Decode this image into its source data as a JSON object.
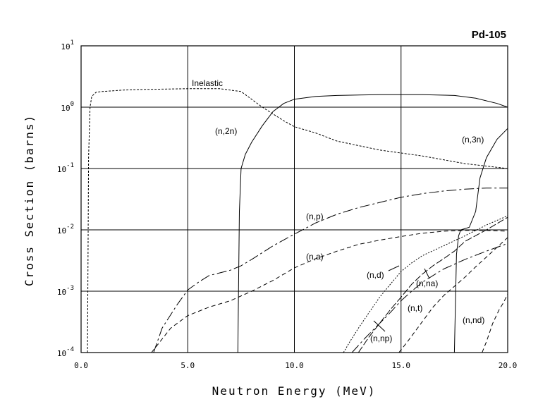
{
  "chart_data": {
    "type": "line",
    "title": "Pd-105",
    "xlabel": "Neutron Energy (MeV)",
    "ylabel": "Cross Section (barns)",
    "xlim": [
      0,
      20
    ],
    "ylim": [
      0.0001,
      10
    ],
    "yscale": "log",
    "grid": true,
    "x_ticks": [
      {
        "value": 0,
        "label": "0.0"
      },
      {
        "value": 5,
        "label": "5.0"
      },
      {
        "value": 10,
        "label": "10.0"
      },
      {
        "value": 15,
        "label": "15.0"
      },
      {
        "value": 20,
        "label": "20.0"
      }
    ],
    "y_ticks": [
      {
        "value": 0.0001,
        "base": "10",
        "exp": "-4"
      },
      {
        "value": 0.001,
        "base": "10",
        "exp": "-3"
      },
      {
        "value": 0.01,
        "base": "10",
        "exp": "-2"
      },
      {
        "value": 0.1,
        "base": "10",
        "exp": "-1"
      },
      {
        "value": 1,
        "base": "10",
        "exp": "0"
      },
      {
        "value": 10,
        "base": "10",
        "exp": "1"
      }
    ],
    "series": [
      {
        "name": "Inelastic",
        "dash": "3,2",
        "x": [
          0.3,
          0.35,
          0.42,
          0.5,
          0.7,
          1.0,
          2.0,
          3.0,
          5.0,
          6.5,
          7.5,
          8.5,
          9.5,
          10.0,
          11.0,
          12.0,
          14.0,
          16.0,
          18.0,
          20.0
        ],
        "y": [
          0.0001,
          0.15,
          1.0,
          1.5,
          1.75,
          1.8,
          1.9,
          1.95,
          2.0,
          2.0,
          1.8,
          1.0,
          0.6,
          0.48,
          0.38,
          0.28,
          0.2,
          0.16,
          0.12,
          0.1
        ]
      },
      {
        "name": "(n,2n)",
        "dash": "",
        "x": [
          7.35,
          7.42,
          7.5,
          7.7,
          8.0,
          8.5,
          9.0,
          9.5,
          10.0,
          11.0,
          12.0,
          14.0,
          16.0,
          17.5,
          18.5,
          19.5,
          20.0
        ],
        "y": [
          0.0001,
          0.02,
          0.1,
          0.17,
          0.27,
          0.5,
          0.85,
          1.15,
          1.35,
          1.5,
          1.55,
          1.6,
          1.6,
          1.55,
          1.4,
          1.15,
          1.0
        ]
      },
      {
        "name": "(n,3n)",
        "dash": "",
        "x": [
          17.5,
          17.6,
          17.7,
          17.8,
          18.2,
          18.5,
          18.7,
          19.0,
          19.5,
          20.0
        ],
        "y": [
          0.0001,
          0.004,
          0.008,
          0.01,
          0.011,
          0.02,
          0.07,
          0.15,
          0.3,
          0.45
        ]
      },
      {
        "name": "(n,p)",
        "dash": "14,4,3,4",
        "x": [
          3.4,
          3.8,
          4.5,
          5.0,
          5.5,
          6.0,
          7.0,
          7.5,
          8.0,
          9.0,
          10.0,
          11.0,
          12.0,
          13.0,
          14.0,
          15.0,
          16.0,
          17.0,
          18.0,
          19.0,
          20.0
        ],
        "y": [
          0.0001,
          0.00025,
          0.0006,
          0.00105,
          0.0014,
          0.0018,
          0.0022,
          0.0026,
          0.0033,
          0.0055,
          0.0085,
          0.013,
          0.018,
          0.023,
          0.028,
          0.034,
          0.039,
          0.043,
          0.046,
          0.048,
          0.048
        ]
      },
      {
        "name": "(n,a)",
        "dash": "6,4",
        "x": [
          3.3,
          3.7,
          4.2,
          5.0,
          6.0,
          7.0,
          8.0,
          9.0,
          10.0,
          11.0,
          12.0,
          13.0,
          14.0,
          15.0,
          16.0,
          17.0,
          18.0,
          19.0,
          20.0
        ],
        "y": [
          0.0001,
          0.00015,
          0.00025,
          0.0004,
          0.00055,
          0.0007,
          0.001,
          0.0015,
          0.0024,
          0.0034,
          0.0045,
          0.0058,
          0.0068,
          0.0078,
          0.0088,
          0.0095,
          0.0098,
          0.0098,
          0.0095
        ]
      },
      {
        "name": "(n,d)",
        "dash": "2,2",
        "x": [
          12.3,
          12.6,
          13.0,
          13.5,
          14.0,
          14.5,
          15.0,
          15.5,
          16.0,
          17.0,
          18.0,
          19.0,
          20.0
        ],
        "y": [
          0.0001,
          0.00015,
          0.00025,
          0.00045,
          0.0008,
          0.0013,
          0.0021,
          0.0029,
          0.0038,
          0.0055,
          0.008,
          0.012,
          0.017
        ]
      },
      {
        "name": "(n,na)",
        "dash": "10,3",
        "x": [
          13.0,
          13.5,
          14.0,
          14.5,
          15.0,
          15.5,
          16.0,
          16.5,
          17.0,
          17.5,
          18.0,
          19.0,
          20.0
        ],
        "y": [
          0.0001,
          0.00018,
          0.0003,
          0.0005,
          0.0008,
          0.0013,
          0.0019,
          0.0026,
          0.0034,
          0.0045,
          0.0065,
          0.01,
          0.016
        ]
      },
      {
        "name": "(n,np)",
        "dash": "14,4,3,4",
        "x": [
          12.7,
          13.3,
          14.0,
          14.5,
          15.0,
          15.5,
          16.0,
          16.5,
          17.0,
          18.0,
          19.0,
          20.0
        ],
        "y": [
          0.0001,
          0.00017,
          0.0003,
          0.00045,
          0.0007,
          0.001,
          0.0014,
          0.0018,
          0.0023,
          0.0033,
          0.0045,
          0.006
        ]
      },
      {
        "name": "(n,t)",
        "dash": "6,4",
        "x": [
          14.9,
          15.3,
          16.0,
          16.5,
          17.0,
          17.5,
          18.0,
          18.5,
          19.0,
          19.5,
          20.0
        ],
        "y": [
          0.0001,
          0.00015,
          0.00032,
          0.00055,
          0.00085,
          0.0012,
          0.0017,
          0.0025,
          0.0036,
          0.0052,
          0.0075
        ]
      },
      {
        "name": "(n,nd)",
        "dash": "6,4",
        "x": [
          18.8,
          19.0,
          19.3,
          19.6,
          19.8,
          20.0
        ],
        "y": [
          0.0001,
          0.00015,
          0.0003,
          0.0005,
          0.00065,
          0.0009
        ]
      }
    ],
    "annotations": [
      {
        "text": "Inelastic",
        "series": "Inelastic"
      },
      {
        "text": "(n,2n)",
        "series": "(n,2n)"
      },
      {
        "text": "(n,3n)",
        "series": "(n,3n)"
      },
      {
        "text": "(n,p)",
        "series": "(n,p)"
      },
      {
        "text": "(n,a)",
        "series": "(n,a)"
      },
      {
        "text": "(n,d)",
        "series": "(n,d)"
      },
      {
        "text": "(n,na)",
        "series": "(n,na)"
      },
      {
        "text": "(n,t)",
        "series": "(n,t)"
      },
      {
        "text": "(n,np)",
        "series": "(n,np)"
      },
      {
        "text": "(n,nd)",
        "series": "(n,nd)"
      }
    ]
  }
}
